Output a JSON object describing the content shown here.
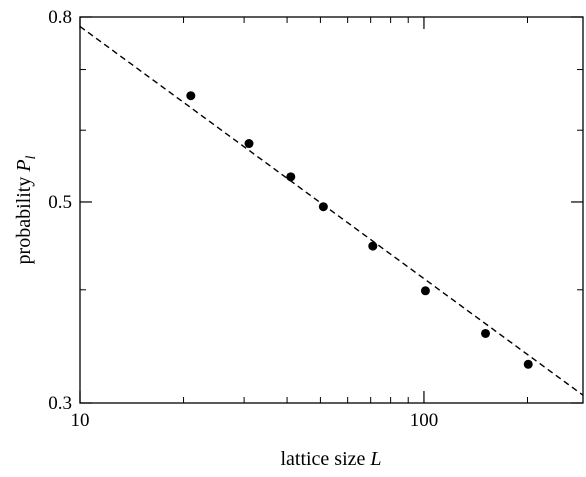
{
  "chart_data": {
    "type": "scatter",
    "xlabel": "lattice size",
    "xlabel_var": "L",
    "ylabel": "probability",
    "ylabel_var": "P",
    "ylabel_sub": "l",
    "xscale": "log",
    "yscale": "log",
    "xlim": [
      10,
      290
    ],
    "ylim": [
      0.3,
      0.8
    ],
    "x_ticks": [
      {
        "value": 10,
        "label": "10"
      },
      {
        "value": 100,
        "label": "100"
      }
    ],
    "y_ticks": [
      {
        "value": 0.3,
        "label": "0.3"
      },
      {
        "value": 0.5,
        "label": "0.5"
      },
      {
        "value": 0.8,
        "label": "0.8"
      }
    ],
    "y_minor_ticks": [
      0.4,
      0.6,
      0.7
    ],
    "series": [
      {
        "marker": "filled-circle",
        "color": "#000000",
        "x": [
          21,
          31,
          41,
          51,
          71,
          101,
          151,
          201
        ],
        "y": [
          0.655,
          0.58,
          0.533,
          0.494,
          0.447,
          0.399,
          0.358,
          0.331
        ]
      }
    ],
    "fit_line": {
      "style": "dashed",
      "color": "#000000",
      "x": [
        10,
        290
      ],
      "y": [
        0.781,
        0.306
      ]
    },
    "grid": false,
    "legend": "none"
  }
}
